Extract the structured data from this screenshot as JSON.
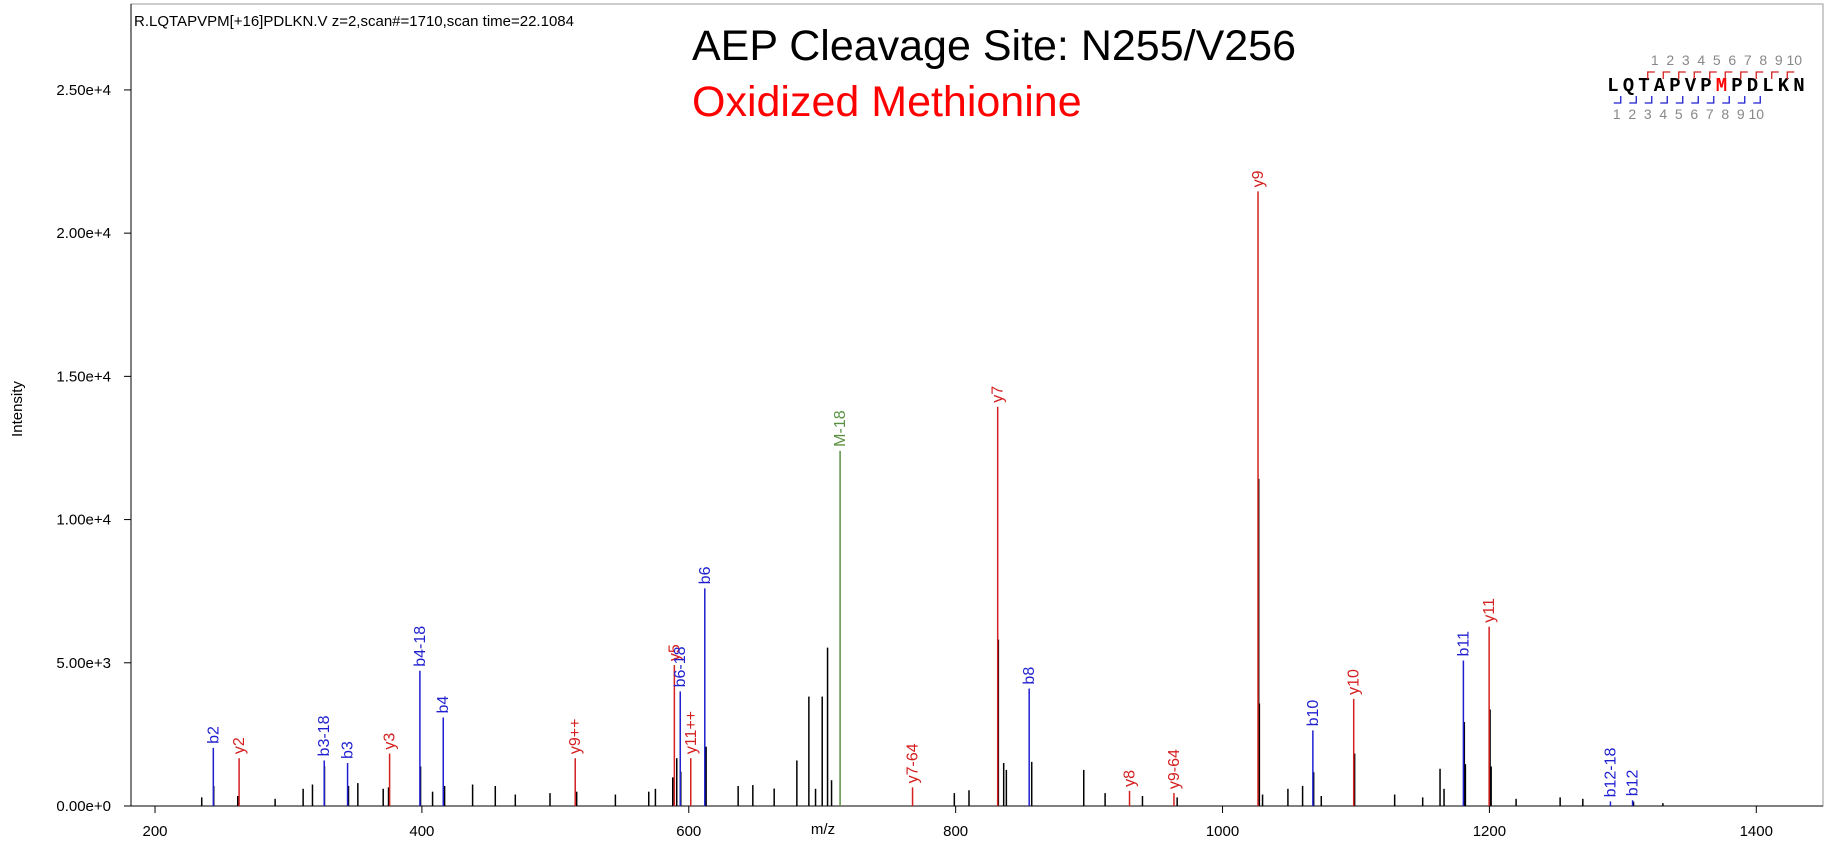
{
  "chart_data": {
    "type": "stem",
    "header": "R.LQTAPVPM[+16]PDLKN.V z=2,scan#=1710,scan time=22.1084",
    "title": "AEP Cleavage Site: N255/V256",
    "subtitle": "Oxidized Methionine",
    "title_color": "#000000",
    "subtitle_color": "#ff0000",
    "xlabel": "m/z",
    "ylabel": "Intensity",
    "xlim": [
      182,
      1444
    ],
    "ylim": [
      0,
      28000
    ],
    "xticks": [
      200,
      400,
      600,
      800,
      1000,
      1200,
      1400
    ],
    "yticks": [
      {
        "value": 0,
        "label": "0.00e+0"
      },
      {
        "value": 5000,
        "label": "5.00e+3"
      },
      {
        "value": 10000,
        "label": "1.00e+4"
      },
      {
        "value": 15000,
        "label": "1.50e+4"
      },
      {
        "value": 20000,
        "label": "2.00e+4"
      },
      {
        "value": 25000,
        "label": "2.50e+4"
      }
    ],
    "annotated": {
      "x": [
        243.7,
        263,
        326.8,
        344.3,
        375.8,
        398.5,
        416,
        514.9,
        589.2,
        593.6,
        601.5,
        612,
        713.4,
        767.7,
        831.5,
        855.1,
        930.3,
        963.6,
        1026.6,
        1067.7,
        1098.3,
        1180.5,
        1199.8,
        1290.7,
        1307.3
      ],
      "values": [
        2030,
        1670,
        1590,
        1500,
        1830,
        4720,
        3090,
        1670,
        4920,
        4000,
        1670,
        7600,
        12400,
        650,
        13940,
        4100,
        530,
        450,
        21460,
        2640,
        3740,
        5080,
        6260,
        160,
        200
      ],
      "labels": [
        "b2",
        "y2",
        "b3-18",
        "b3",
        "y3",
        "b4-18",
        "b4",
        "y9++",
        "y5",
        "b6-18",
        "y11++",
        "b6",
        "M-18",
        "y7-64",
        "y7",
        "b8",
        "y8",
        "y9-64",
        "y9",
        "b10",
        "y10",
        "b11",
        "y11",
        "b12-18",
        "b12"
      ],
      "colors": [
        "#1f1fd0",
        "#d42020",
        "#1f1fd0",
        "#1f1fd0",
        "#d42020",
        "#1f1fd0",
        "#1f1fd0",
        "#d42020",
        "#d42020",
        "#1f1fd0",
        "#d42020",
        "#1f1fd0",
        "#5a9040",
        "#d42020",
        "#d42020",
        "#1f1fd0",
        "#d42020",
        "#d42020",
        "#d42020",
        "#1f1fd0",
        "#d42020",
        "#1f1fd0",
        "#d42020",
        "#1f1fd0",
        "#1f1fd0"
      ]
    },
    "unannotated": {
      "color": "#000000",
      "x": [
        235,
        244,
        262,
        290,
        311,
        318,
        327,
        345,
        352,
        371,
        375,
        399,
        408,
        417,
        438,
        455,
        470,
        496,
        516,
        545,
        570,
        575,
        588,
        591,
        594,
        613,
        637,
        648,
        664,
        681,
        690,
        695,
        700,
        704,
        707,
        799,
        810,
        832,
        836,
        838,
        857,
        896,
        912,
        940,
        966,
        1027.1,
        1027.6,
        1030,
        1049,
        1060,
        1068.3,
        1074,
        1099,
        1129,
        1150,
        1163,
        1166,
        1181.2,
        1182,
        1200.5,
        1201.3,
        1220,
        1253,
        1270,
        1308,
        1330
      ],
      "values": [
        300,
        700,
        350,
        250,
        600,
        750,
        1400,
        700,
        800,
        600,
        650,
        1380,
        500,
        700,
        750,
        700,
        400,
        450,
        500,
        400,
        500,
        600,
        1000,
        1670,
        1200,
        2070,
        700,
        730,
        610,
        1590,
        3820,
        600,
        3820,
        5530,
        900,
        450,
        550,
        5810,
        1500,
        1260,
        1540,
        1260,
        450,
        350,
        300,
        11420,
        3580,
        400,
        600,
        700,
        1180,
        350,
        1830,
        400,
        300,
        1300,
        600,
        2930,
        1460,
        3370,
        1380,
        250,
        300,
        250,
        150,
        100
      ]
    },
    "sequence": {
      "residues": [
        "L",
        "Q",
        "T",
        "A",
        "P",
        "V",
        "P",
        "M",
        "P",
        "D",
        "L",
        "K",
        "N"
      ],
      "residue_colors": [
        "#000000",
        "#000000",
        "#000000",
        "#000000",
        "#000000",
        "#000000",
        "#000000",
        "#ff0000",
        "#000000",
        "#000000",
        "#000000",
        "#000000",
        "#000000"
      ],
      "y_numbers": [
        10,
        9,
        8,
        7,
        6,
        5,
        4,
        3,
        2,
        1
      ],
      "b_numbers": [
        1,
        2,
        3,
        4,
        5,
        6,
        7,
        8,
        9,
        10
      ]
    }
  }
}
